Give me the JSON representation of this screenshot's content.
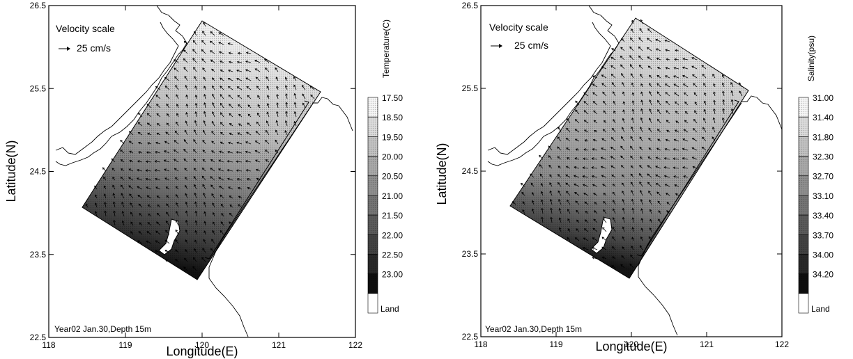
{
  "panels": [
    {
      "id": "temperature",
      "velocity_scale_title": "Velocity scale",
      "velocity_scale_value": "25 cm/s",
      "caption": "Year02 Jan.30,Depth 15m",
      "xlabel": "Longitude(E)",
      "ylabel": "Latitude(N)",
      "x_ticks": [
        "118",
        "119",
        "120",
        "121",
        "122"
      ],
      "y_ticks": [
        "22.5",
        "23.5",
        "24.5",
        "25.5",
        "26.5"
      ],
      "colorbar_title": "Temperature(C)",
      "colorbar_levels": [
        "17.50",
        "18.50",
        "19.50",
        "20.00",
        "20.50",
        "21.00",
        "21.50",
        "22.00",
        "22.50",
        "23.00"
      ],
      "land_label": "Land"
    },
    {
      "id": "salinity",
      "velocity_scale_title": "Velocity scale",
      "velocity_scale_value": "25 cm/s",
      "caption": "Year02 Jan.30,Depth 15m",
      "xlabel": "Longitude(E)",
      "ylabel": "Latitude(N)",
      "x_ticks": [
        "118",
        "119",
        "120",
        "121",
        "122"
      ],
      "y_ticks": [
        "22.5",
        "23.5",
        "24.5",
        "25.5",
        "26.5"
      ],
      "colorbar_title": "Salinity(psu)",
      "colorbar_levels": [
        "31.00",
        "31.40",
        "31.80",
        "32.30",
        "32.70",
        "33.10",
        "33.40",
        "33.70",
        "34.00",
        "34.20"
      ],
      "land_label": "Land"
    }
  ],
  "colors": {
    "frame": "#000000",
    "land": "#ffffff",
    "ramp_light": "#f4f4f4",
    "ramp_dark": "#111111"
  }
}
